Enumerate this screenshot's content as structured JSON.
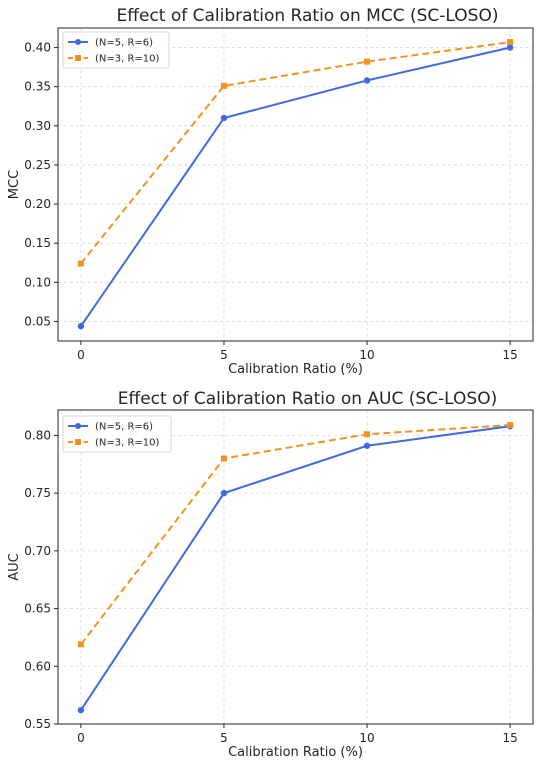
{
  "chart_data": [
    {
      "type": "line",
      "title": "Effect of Calibration Ratio on MCC (SC-LOSO)",
      "xlabel": "Calibration Ratio (%)",
      "ylabel": "MCC",
      "x": [
        0,
        5,
        10,
        15
      ],
      "xticks": [
        0,
        5,
        10,
        15
      ],
      "xlim": [
        -0.8,
        15.8
      ],
      "ylim": [
        0.025,
        0.425
      ],
      "yticks": [
        0.05,
        0.1,
        0.15,
        0.2,
        0.25,
        0.3,
        0.35,
        0.4
      ],
      "ytick_labels": [
        "0.05",
        "0.10",
        "0.15",
        "0.20",
        "0.25",
        "0.30",
        "0.35",
        "0.40"
      ],
      "grid": true,
      "legend_position": "upper-left",
      "series": [
        {
          "name": "(N=5, R=6)",
          "values": [
            0.044,
            0.31,
            0.358,
            0.4
          ],
          "color": "#4169e1",
          "marker": "circle",
          "dash": "solid"
        },
        {
          "name": "(N=3, R=10)",
          "values": [
            0.124,
            0.351,
            0.382,
            0.407
          ],
          "color": "#f5921e",
          "marker": "square",
          "dash": "dashed"
        }
      ]
    },
    {
      "type": "line",
      "title": "Effect of Calibration Ratio on AUC (SC-LOSO)",
      "xlabel": "Calibration Ratio (%)",
      "ylabel": "AUC",
      "x": [
        0,
        5,
        10,
        15
      ],
      "xticks": [
        0,
        5,
        10,
        15
      ],
      "xlim": [
        -0.8,
        15.8
      ],
      "ylim": [
        0.55,
        0.822
      ],
      "yticks": [
        0.55,
        0.6,
        0.65,
        0.7,
        0.75,
        0.8
      ],
      "ytick_labels": [
        "0.55",
        "0.60",
        "0.65",
        "0.70",
        "0.75",
        "0.80"
      ],
      "grid": true,
      "legend_position": "upper-left",
      "series": [
        {
          "name": "(N=5, R=6)",
          "values": [
            0.562,
            0.75,
            0.791,
            0.808
          ],
          "color": "#4169e1",
          "marker": "circle",
          "dash": "solid"
        },
        {
          "name": "(N=3, R=10)",
          "values": [
            0.619,
            0.78,
            0.801,
            0.809
          ],
          "color": "#f5921e",
          "marker": "square",
          "dash": "dashed"
        }
      ]
    }
  ]
}
